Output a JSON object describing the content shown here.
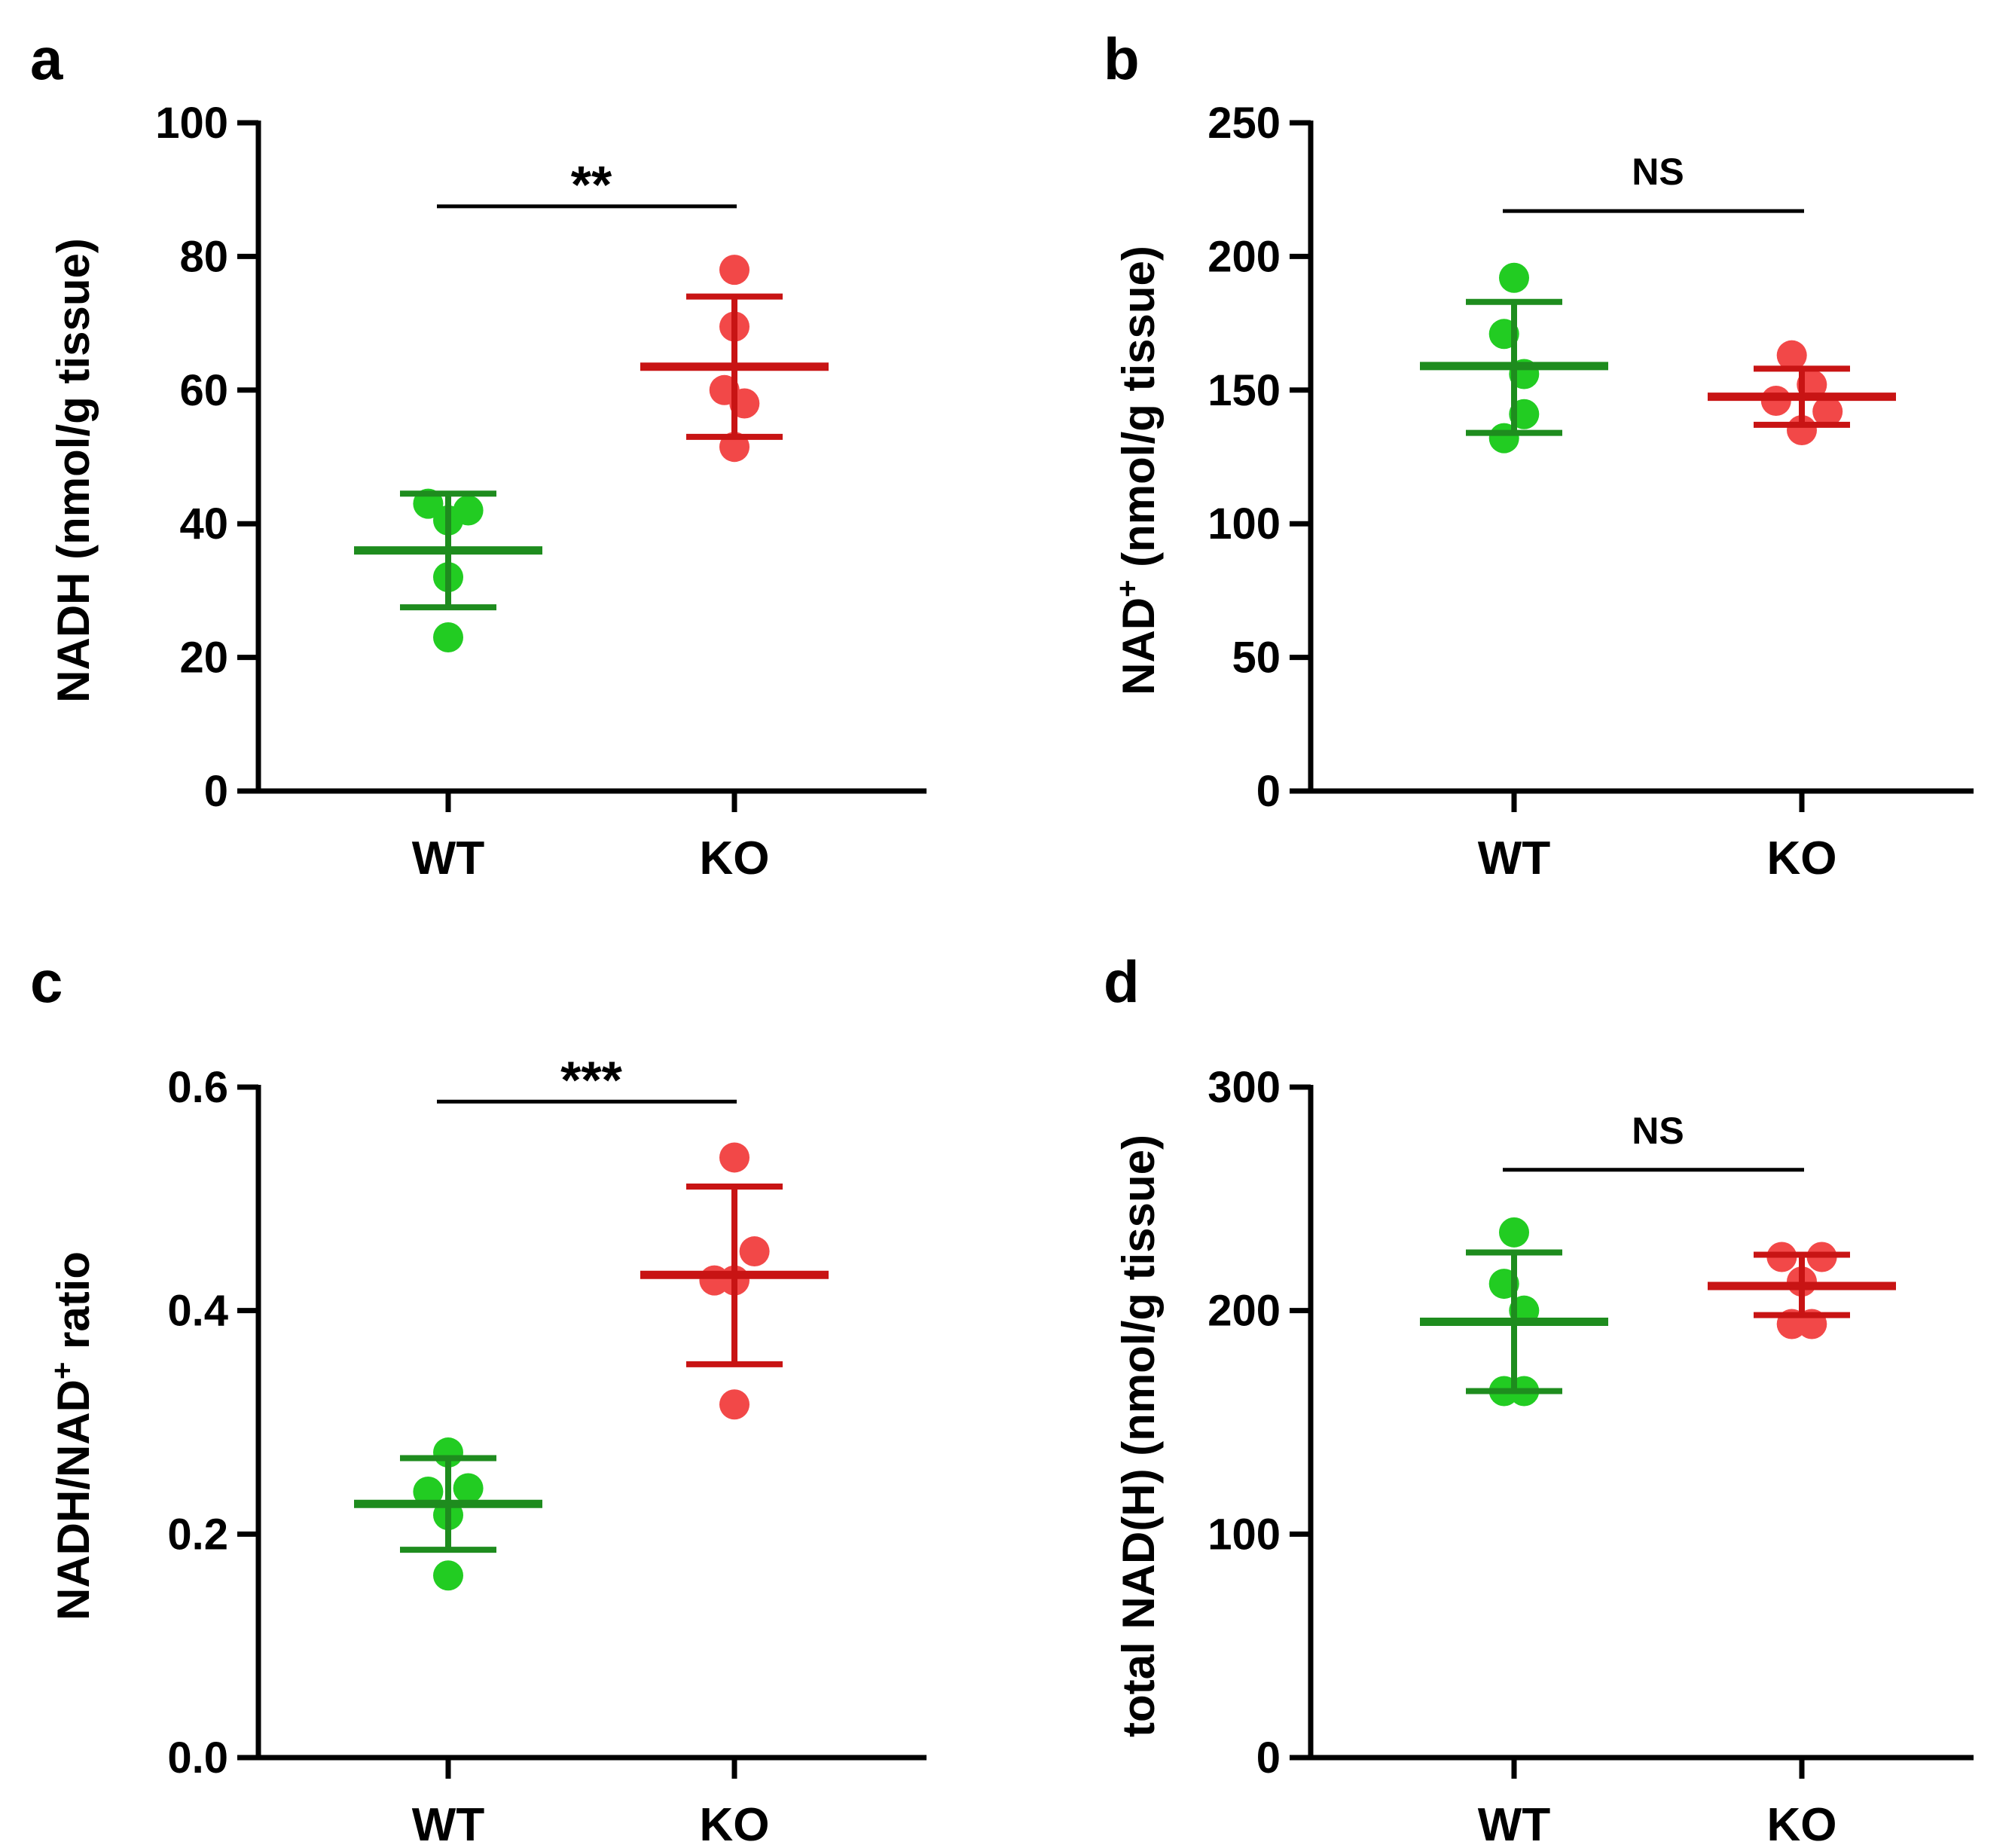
{
  "colors": {
    "wt_point": "#22cc22",
    "wt_line": "#1e8c1e",
    "ko_point": "#f24848",
    "ko_line": "#c81414",
    "axis": "#000000"
  },
  "chart_data": [
    {
      "panel": "a",
      "type": "scatter",
      "title": "",
      "xlabel": "",
      "ylabel": "NADH (nmol/g tissue)",
      "ylabel_parts": [
        {
          "text": "NADH (nmol/g tissue)",
          "sup": false
        }
      ],
      "ylim": [
        0,
        100
      ],
      "yticks": [
        0,
        20,
        40,
        60,
        80,
        100
      ],
      "ytick_labels": [
        "0",
        "20",
        "40",
        "60",
        "80",
        "100"
      ],
      "categories": [
        "WT",
        "KO"
      ],
      "series": [
        {
          "name": "WT",
          "points": [
            {
              "x": -0.14,
              "y": 43
            },
            {
              "x": 0.0,
              "y": 40.5
            },
            {
              "x": 0.14,
              "y": 42
            },
            {
              "x": 0.0,
              "y": 32
            },
            {
              "x": 0.0,
              "y": 23
            }
          ],
          "mean": 36,
          "sd_low": 27.5,
          "sd_high": 44.5
        },
        {
          "name": "KO",
          "points": [
            {
              "x": 0.0,
              "y": 78
            },
            {
              "x": 0.0,
              "y": 69.5
            },
            {
              "x": -0.07,
              "y": 60
            },
            {
              "x": 0.07,
              "y": 58
            },
            {
              "x": 0.0,
              "y": 51.5
            }
          ],
          "mean": 63.5,
          "sd_low": 53,
          "sd_high": 74
        }
      ],
      "significance": {
        "label": "**",
        "y": 87.5
      }
    },
    {
      "panel": "b",
      "type": "scatter",
      "title": "",
      "xlabel": "",
      "ylabel": "NAD+ (nmol/g tissue)",
      "ylabel_parts": [
        {
          "text": "NAD",
          "sup": false
        },
        {
          "text": "+",
          "sup": true
        },
        {
          "text": " (nmol/g tissue)",
          "sup": false
        }
      ],
      "ylim": [
        0,
        250
      ],
      "yticks": [
        0,
        50,
        100,
        150,
        200,
        250
      ],
      "ytick_labels": [
        "0",
        "50",
        "100",
        "150",
        "200",
        "250"
      ],
      "categories": [
        "WT",
        "KO"
      ],
      "series": [
        {
          "name": "WT",
          "points": [
            {
              "x": 0.0,
              "y": 192
            },
            {
              "x": -0.07,
              "y": 171
            },
            {
              "x": 0.07,
              "y": 156
            },
            {
              "x": 0.07,
              "y": 141
            },
            {
              "x": -0.07,
              "y": 132
            }
          ],
          "mean": 159,
          "sd_low": 134,
          "sd_high": 183
        },
        {
          "name": "KO",
          "points": [
            {
              "x": -0.07,
              "y": 163
            },
            {
              "x": -0.18,
              "y": 146
            },
            {
              "x": 0.07,
              "y": 152
            },
            {
              "x": 0.18,
              "y": 142
            },
            {
              "x": 0.0,
              "y": 135
            }
          ],
          "mean": 147.5,
          "sd_low": 137,
          "sd_high": 158
        }
      ],
      "significance": {
        "label": "NS",
        "y": 217
      }
    },
    {
      "panel": "c",
      "type": "scatter",
      "title": "",
      "xlabel": "",
      "ylabel": "NADH/NAD+ ratio",
      "ylabel_parts": [
        {
          "text": "NADH/NAD",
          "sup": false
        },
        {
          "text": "+",
          "sup": true
        },
        {
          "text": " ratio",
          "sup": false
        }
      ],
      "ylim": [
        0,
        0.6
      ],
      "yticks": [
        0,
        0.2,
        0.4,
        0.6
      ],
      "ytick_labels": [
        "0.0",
        "0.2",
        "0.4",
        "0.6"
      ],
      "categories": [
        "WT",
        "KO"
      ],
      "series": [
        {
          "name": "WT",
          "points": [
            {
              "x": 0.0,
              "y": 0.273
            },
            {
              "x": -0.14,
              "y": 0.238
            },
            {
              "x": 0.14,
              "y": 0.241
            },
            {
              "x": 0.0,
              "y": 0.217
            },
            {
              "x": 0.0,
              "y": 0.163
            }
          ],
          "mean": 0.227,
          "sd_low": 0.186,
          "sd_high": 0.268
        },
        {
          "name": "KO",
          "points": [
            {
              "x": 0.0,
              "y": 0.537
            },
            {
              "x": 0.14,
              "y": 0.453
            },
            {
              "x": -0.14,
              "y": 0.427
            },
            {
              "x": 0.0,
              "y": 0.427
            },
            {
              "x": 0.0,
              "y": 0.316
            }
          ],
          "mean": 0.432,
          "sd_low": 0.352,
          "sd_high": 0.511
        }
      ],
      "significance": {
        "label": "***",
        "y": 0.587
      }
    },
    {
      "panel": "d",
      "type": "scatter",
      "title": "",
      "xlabel": "",
      "ylabel": "total NAD(H) (nmol/g tissue)",
      "ylabel_parts": [
        {
          "text": "total NAD(H) (nmol/g tissue)",
          "sup": false
        }
      ],
      "ylim": [
        0,
        300
      ],
      "yticks": [
        0,
        100,
        200,
        300
      ],
      "ytick_labels": [
        "0",
        "100",
        "200",
        "300"
      ],
      "categories": [
        "WT",
        "KO"
      ],
      "series": [
        {
          "name": "WT",
          "points": [
            {
              "x": 0.0,
              "y": 235
            },
            {
              "x": -0.07,
              "y": 212
            },
            {
              "x": 0.07,
              "y": 200
            },
            {
              "x": -0.07,
              "y": 164
            },
            {
              "x": 0.07,
              "y": 164
            }
          ],
          "mean": 195,
          "sd_low": 164,
          "sd_high": 226
        },
        {
          "name": "KO",
          "points": [
            {
              "x": -0.14,
              "y": 224
            },
            {
              "x": 0.14,
              "y": 224
            },
            {
              "x": 0.0,
              "y": 213
            },
            {
              "x": -0.07,
              "y": 194
            },
            {
              "x": 0.07,
              "y": 194
            }
          ],
          "mean": 211,
          "sd_low": 198,
          "sd_high": 225
        }
      ],
      "significance": {
        "label": "NS",
        "y": 263
      }
    }
  ]
}
